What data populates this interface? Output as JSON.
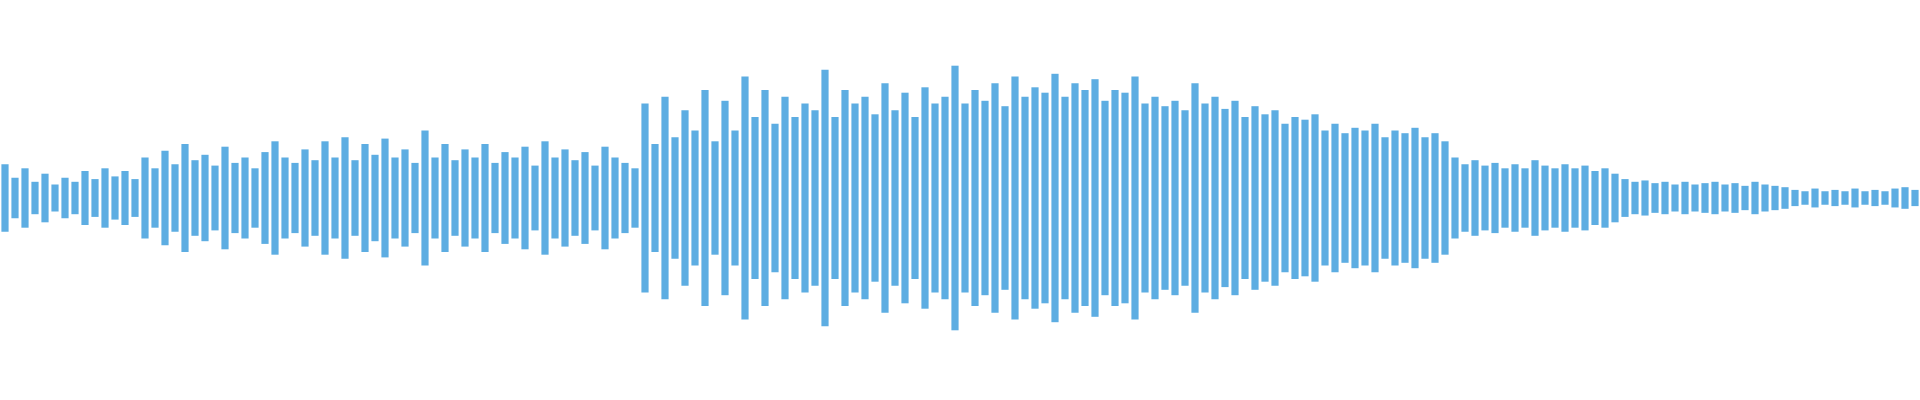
{
  "waveform": {
    "color": "#5dade2",
    "envelope": [
      0.25,
      0.15,
      0.22,
      0.12,
      0.18,
      0.1,
      0.15,
      0.12,
      0.2,
      0.14,
      0.22,
      0.16,
      0.2,
      0.14,
      0.3,
      0.22,
      0.35,
      0.25,
      0.4,
      0.28,
      0.32,
      0.24,
      0.38,
      0.26,
      0.3,
      0.22,
      0.34,
      0.42,
      0.3,
      0.26,
      0.36,
      0.28,
      0.42,
      0.3,
      0.45,
      0.28,
      0.4,
      0.32,
      0.44,
      0.3,
      0.36,
      0.26,
      0.5,
      0.3,
      0.4,
      0.28,
      0.36,
      0.3,
      0.4,
      0.26,
      0.34,
      0.3,
      0.38,
      0.24,
      0.42,
      0.3,
      0.36,
      0.28,
      0.34,
      0.24,
      0.38,
      0.3,
      0.26,
      0.22,
      0.7,
      0.4,
      0.75,
      0.45,
      0.65,
      0.5,
      0.8,
      0.42,
      0.72,
      0.5,
      0.9,
      0.6,
      0.8,
      0.55,
      0.75,
      0.6,
      0.7,
      0.65,
      0.95,
      0.6,
      0.8,
      0.7,
      0.75,
      0.62,
      0.85,
      0.65,
      0.78,
      0.6,
      0.82,
      0.7,
      0.75,
      0.98,
      0.7,
      0.8,
      0.72,
      0.85,
      0.68,
      0.9,
      0.75,
      0.82,
      0.78,
      0.92,
      0.75,
      0.85,
      0.8,
      0.88,
      0.72,
      0.8,
      0.78,
      0.9,
      0.7,
      0.75,
      0.68,
      0.72,
      0.65,
      0.85,
      0.7,
      0.75,
      0.66,
      0.72,
      0.6,
      0.68,
      0.62,
      0.65,
      0.55,
      0.6,
      0.58,
      0.62,
      0.5,
      0.55,
      0.48,
      0.52,
      0.5,
      0.55,
      0.45,
      0.5,
      0.48,
      0.52,
      0.45,
      0.48,
      0.42,
      0.3,
      0.25,
      0.28,
      0.24,
      0.26,
      0.22,
      0.25,
      0.22,
      0.28,
      0.24,
      0.22,
      0.25,
      0.22,
      0.24,
      0.2,
      0.22,
      0.18,
      0.14,
      0.12,
      0.13,
      0.11,
      0.12,
      0.1,
      0.12,
      0.1,
      0.11,
      0.12,
      0.1,
      0.11,
      0.09,
      0.12,
      0.1,
      0.09,
      0.08,
      0.06,
      0.05,
      0.07,
      0.05,
      0.06,
      0.05,
      0.07,
      0.05,
      0.06,
      0.05,
      0.07,
      0.08,
      0.06
    ]
  }
}
